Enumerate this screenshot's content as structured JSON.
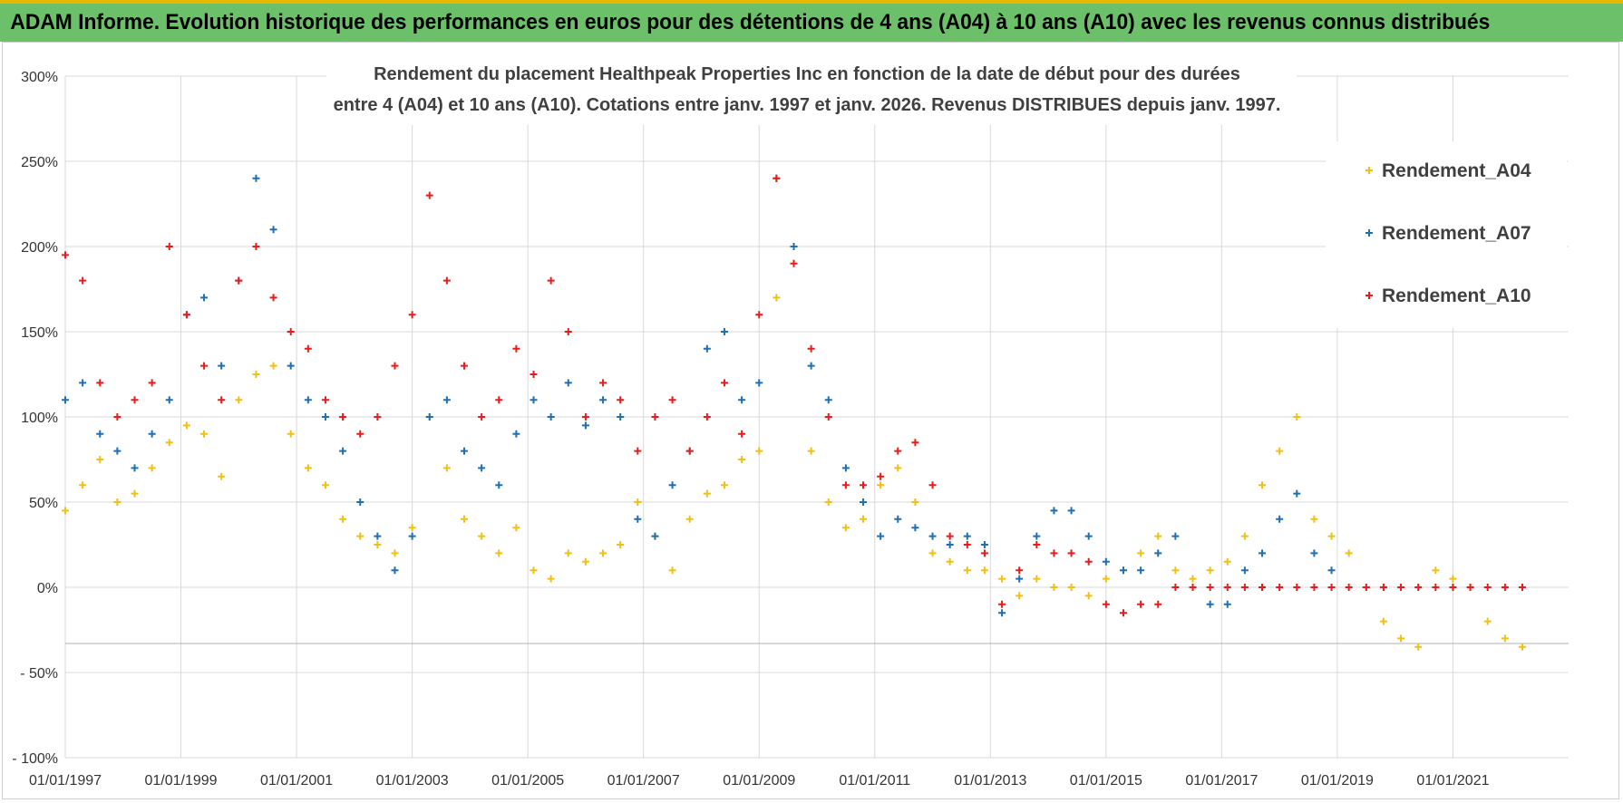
{
  "banner": {
    "title": "ADAM Informe. Evolution historique des performances en euros pour des détentions de 4 ans (A04) à 10 ans (A10) avec les revenus connus distribués"
  },
  "chart_data": {
    "type": "scatter",
    "title_line1": "Rendement du placement Healthpeak Properties Inc en fonction de la date de début pour des durées",
    "title_line2": "entre 4 (A04) et 10 ans (A10).  Cotations entre janv. 1997 et janv. 2026. Revenus DISTRIBUES  depuis janv. 1997.",
    "xlabel": "",
    "ylabel": "",
    "xlim": [
      1997.0,
      2023.0
    ],
    "ylim": [
      -100,
      300
    ],
    "y_ticks": [
      300,
      250,
      200,
      150,
      100,
      50,
      0,
      -50,
      -100
    ],
    "y_tick_labels": [
      "300%",
      "250%",
      "200%",
      "150%",
      "100%",
      "50%",
      "0%",
      "- 50%",
      "- 100%"
    ],
    "x_ticks": [
      1997,
      1999,
      2001,
      2003,
      2005,
      2007,
      2009,
      2011,
      2013,
      2015,
      2017,
      2019,
      2021
    ],
    "x_tick_labels": [
      "01/01/1997",
      "01/01/1999",
      "01/01/2001",
      "01/01/2003",
      "01/01/2005",
      "01/01/2007",
      "01/01/2009",
      "01/01/2011",
      "01/01/2013",
      "01/01/2015",
      "01/01/2017",
      "01/01/2019",
      "01/01/2021"
    ],
    "legend_position": "top-right",
    "marker": "+",
    "series": [
      {
        "name": "Rendement_A04",
        "color": "#f2c014",
        "x": [
          1997.0,
          1997.3,
          1997.6,
          1997.9,
          1998.2,
          1998.5,
          1998.8,
          1999.1,
          1999.4,
          1999.7,
          2000.0,
          2000.3,
          2000.6,
          2000.9,
          2001.2,
          2001.5,
          2001.8,
          2002.1,
          2002.4,
          2002.7,
          2003.0,
          2003.3,
          2003.6,
          2003.9,
          2004.2,
          2004.5,
          2004.8,
          2005.1,
          2005.4,
          2005.7,
          2006.0,
          2006.3,
          2006.6,
          2006.9,
          2007.2,
          2007.5,
          2007.8,
          2008.1,
          2008.4,
          2008.7,
          2009.0,
          2009.3,
          2009.6,
          2009.9,
          2010.2,
          2010.5,
          2010.8,
          2011.1,
          2011.4,
          2011.7,
          2012.0,
          2012.3,
          2012.6,
          2012.9,
          2013.2,
          2013.5,
          2013.8,
          2014.1,
          2014.4,
          2014.7,
          2015.0,
          2015.3,
          2015.6,
          2015.9,
          2016.2,
          2016.5,
          2016.8,
          2017.1,
          2017.4,
          2017.7,
          2018.0,
          2018.3,
          2018.6,
          2018.9,
          2019.2,
          2019.5,
          2019.8,
          2020.1,
          2020.4,
          2020.7,
          2021.0,
          2021.3,
          2021.6,
          2021.9,
          2022.2
        ],
        "values": [
          45,
          60,
          75,
          50,
          55,
          70,
          85,
          95,
          90,
          65,
          110,
          125,
          130,
          90,
          70,
          60,
          40,
          30,
          25,
          20,
          35,
          100,
          70,
          40,
          30,
          20,
          35,
          10,
          5,
          20,
          15,
          20,
          25,
          50,
          30,
          10,
          40,
          55,
          60,
          75,
          80,
          170,
          200,
          80,
          50,
          35,
          40,
          60,
          70,
          50,
          20,
          15,
          10,
          10,
          5,
          -5,
          5,
          0,
          0,
          -5,
          5,
          10,
          20,
          30,
          10,
          5,
          10,
          15,
          30,
          60,
          80,
          100,
          40,
          30,
          20,
          0,
          -20,
          -30,
          -35,
          10,
          5,
          0,
          -20,
          -30,
          -35
        ]
      },
      {
        "name": "Rendement_A07",
        "color": "#1f6fb5",
        "x": [
          1997.0,
          1997.3,
          1997.6,
          1997.9,
          1998.2,
          1998.5,
          1998.8,
          1999.1,
          1999.4,
          1999.7,
          2000.0,
          2000.3,
          2000.6,
          2000.9,
          2001.2,
          2001.5,
          2001.8,
          2002.1,
          2002.4,
          2002.7,
          2003.0,
          2003.3,
          2003.6,
          2003.9,
          2004.2,
          2004.5,
          2004.8,
          2005.1,
          2005.4,
          2005.7,
          2006.0,
          2006.3,
          2006.6,
          2006.9,
          2007.2,
          2007.5,
          2007.8,
          2008.1,
          2008.4,
          2008.7,
          2009.0,
          2009.3,
          2009.6,
          2009.9,
          2010.2,
          2010.5,
          2010.8,
          2011.1,
          2011.4,
          2011.7,
          2012.0,
          2012.3,
          2012.6,
          2012.9,
          2013.2,
          2013.5,
          2013.8,
          2014.1,
          2014.4,
          2014.7,
          2015.0,
          2015.3,
          2015.6,
          2015.9,
          2016.2,
          2016.5,
          2016.8,
          2017.1,
          2017.4,
          2017.7,
          2018.0,
          2018.3,
          2018.6,
          2018.9
        ],
        "values": [
          110,
          120,
          90,
          80,
          70,
          90,
          110,
          160,
          170,
          130,
          180,
          240,
          210,
          130,
          110,
          100,
          80,
          50,
          30,
          10,
          30,
          100,
          110,
          80,
          70,
          60,
          90,
          110,
          100,
          120,
          95,
          110,
          100,
          40,
          30,
          60,
          80,
          140,
          150,
          110,
          120,
          240,
          200,
          130,
          110,
          70,
          50,
          30,
          40,
          35,
          30,
          25,
          30,
          25,
          -15,
          5,
          30,
          45,
          45,
          30,
          15,
          10,
          10,
          20,
          30,
          0,
          -10,
          -10,
          10,
          20,
          40,
          55,
          20,
          10
        ]
      },
      {
        "name": "Rendement_A10",
        "color": "#e81c1c",
        "x": [
          1997.0,
          1997.3,
          1997.6,
          1997.9,
          1998.2,
          1998.5,
          1998.8,
          1999.1,
          1999.4,
          1999.7,
          2000.0,
          2000.3,
          2000.6,
          2000.9,
          2001.2,
          2001.5,
          2001.8,
          2002.1,
          2002.4,
          2002.7,
          2003.0,
          2003.3,
          2003.6,
          2003.9,
          2004.2,
          2004.5,
          2004.8,
          2005.1,
          2005.4,
          2005.7,
          2006.0,
          2006.3,
          2006.6,
          2006.9,
          2007.2,
          2007.5,
          2007.8,
          2008.1,
          2008.4,
          2008.7,
          2009.0,
          2009.3,
          2009.6,
          2009.9,
          2010.2,
          2010.5,
          2010.8,
          2011.1,
          2011.4,
          2011.7,
          2012.0,
          2012.3,
          2012.6,
          2012.9,
          2013.2,
          2013.5,
          2013.8,
          2014.1,
          2014.4,
          2014.7,
          2015.0,
          2015.3,
          2015.6,
          2015.9,
          2016.2,
          2016.5,
          2016.8,
          2017.1,
          2017.4,
          2017.7,
          2018.0,
          2018.3,
          2018.6,
          2018.9,
          2019.2,
          2019.5,
          2019.8,
          2020.1,
          2020.4,
          2020.7,
          2021.0,
          2021.3,
          2021.6,
          2021.9,
          2022.2
        ],
        "values": [
          195,
          180,
          120,
          100,
          110,
          120,
          200,
          160,
          130,
          110,
          180,
          200,
          170,
          150,
          140,
          110,
          100,
          90,
          100,
          130,
          160,
          230,
          180,
          130,
          100,
          110,
          140,
          125,
          180,
          150,
          100,
          120,
          110,
          80,
          100,
          110,
          80,
          100,
          120,
          90,
          160,
          240,
          190,
          140,
          100,
          60,
          60,
          65,
          80,
          85,
          60,
          30,
          25,
          20,
          -10,
          10,
          25,
          20,
          20,
          15,
          -10,
          -15,
          -10,
          -10,
          0,
          0,
          0,
          0,
          0,
          0,
          0,
          0,
          0,
          0,
          0,
          0,
          0,
          0,
          0,
          0,
          0,
          0,
          0,
          0,
          0
        ]
      }
    ]
  }
}
